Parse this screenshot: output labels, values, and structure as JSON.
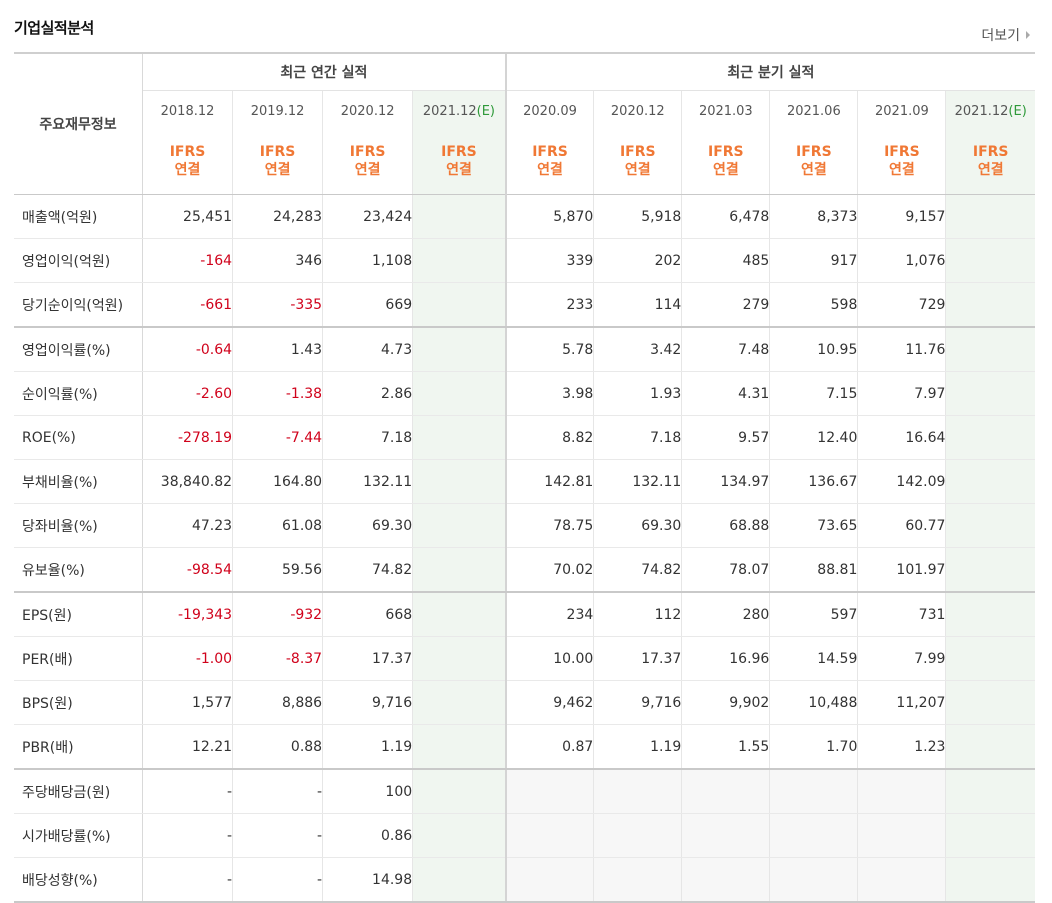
{
  "section_title": "기업실적분석",
  "more_label": "더보기",
  "label_header": "주요재무정보",
  "annual_header": "최근 연간 실적",
  "quarter_header": "최근 분기 실적",
  "periods": [
    {
      "label": "2018.12",
      "est": ""
    },
    {
      "label": "2019.12",
      "est": ""
    },
    {
      "label": "2020.12",
      "est": ""
    },
    {
      "label": "2021.12",
      "est": "(E)"
    },
    {
      "label": "2020.09",
      "est": ""
    },
    {
      "label": "2020.12",
      "est": ""
    },
    {
      "label": "2021.03",
      "est": ""
    },
    {
      "label": "2021.06",
      "est": ""
    },
    {
      "label": "2021.09",
      "est": ""
    },
    {
      "label": "2021.12",
      "est": "(E)"
    }
  ],
  "ifrs_label": "IFRS",
  "consol_label": "연결",
  "rows": [
    {
      "label": "매출액(억원)",
      "values": [
        "25,451",
        "24,283",
        "23,424",
        "",
        "5,870",
        "5,918",
        "6,478",
        "8,373",
        "9,157",
        ""
      ]
    },
    {
      "label": "영업이익(억원)",
      "values": [
        "-164",
        "346",
        "1,108",
        "",
        "339",
        "202",
        "485",
        "917",
        "1,076",
        ""
      ]
    },
    {
      "label": "당기순이익(억원)",
      "values": [
        "-661",
        "-335",
        "669",
        "",
        "233",
        "114",
        "279",
        "598",
        "729",
        ""
      ]
    },
    {
      "label": "영업이익률(%)",
      "values": [
        "-0.64",
        "1.43",
        "4.73",
        "",
        "5.78",
        "3.42",
        "7.48",
        "10.95",
        "11.76",
        ""
      ]
    },
    {
      "label": "순이익률(%)",
      "values": [
        "-2.60",
        "-1.38",
        "2.86",
        "",
        "3.98",
        "1.93",
        "4.31",
        "7.15",
        "7.97",
        ""
      ]
    },
    {
      "label": "ROE(%)",
      "values": [
        "-278.19",
        "-7.44",
        "7.18",
        "",
        "8.82",
        "7.18",
        "9.57",
        "12.40",
        "16.64",
        ""
      ]
    },
    {
      "label": "부채비율(%)",
      "values": [
        "38,840.82",
        "164.80",
        "132.11",
        "",
        "142.81",
        "132.11",
        "134.97",
        "136.67",
        "142.09",
        ""
      ]
    },
    {
      "label": "당좌비율(%)",
      "values": [
        "47.23",
        "61.08",
        "69.30",
        "",
        "78.75",
        "69.30",
        "68.88",
        "73.65",
        "60.77",
        ""
      ]
    },
    {
      "label": "유보율(%)",
      "values": [
        "-98.54",
        "59.56",
        "74.82",
        "",
        "70.02",
        "74.82",
        "78.07",
        "88.81",
        "101.97",
        ""
      ]
    },
    {
      "label": "EPS(원)",
      "values": [
        "-19,343",
        "-932",
        "668",
        "",
        "234",
        "112",
        "280",
        "597",
        "731",
        ""
      ]
    },
    {
      "label": "PER(배)",
      "values": [
        "-1.00",
        "-8.37",
        "17.37",
        "",
        "10.00",
        "17.37",
        "16.96",
        "14.59",
        "7.99",
        ""
      ]
    },
    {
      "label": "BPS(원)",
      "values": [
        "1,577",
        "8,886",
        "9,716",
        "",
        "9,462",
        "9,716",
        "9,902",
        "10,488",
        "11,207",
        ""
      ]
    },
    {
      "label": "PBR(배)",
      "values": [
        "12.21",
        "0.88",
        "1.19",
        "",
        "0.87",
        "1.19",
        "1.55",
        "1.70",
        "1.23",
        ""
      ]
    },
    {
      "label": "주당배당금(원)",
      "values": [
        "-",
        "-",
        "100",
        "",
        "",
        "",
        "",
        "",
        "",
        ""
      ]
    },
    {
      "label": "시가배당률(%)",
      "values": [
        "-",
        "-",
        "0.86",
        "",
        "",
        "",
        "",
        "",
        "",
        ""
      ]
    },
    {
      "label": "배당성향(%)",
      "values": [
        "-",
        "-",
        "14.98",
        "",
        "",
        "",
        "",
        "",
        "",
        ""
      ]
    }
  ],
  "colors": {
    "negative": "#d0021b",
    "ifrs": "#f07835",
    "estimate": "#2f9a3a",
    "estimate_bg": "#f0f6f0"
  }
}
